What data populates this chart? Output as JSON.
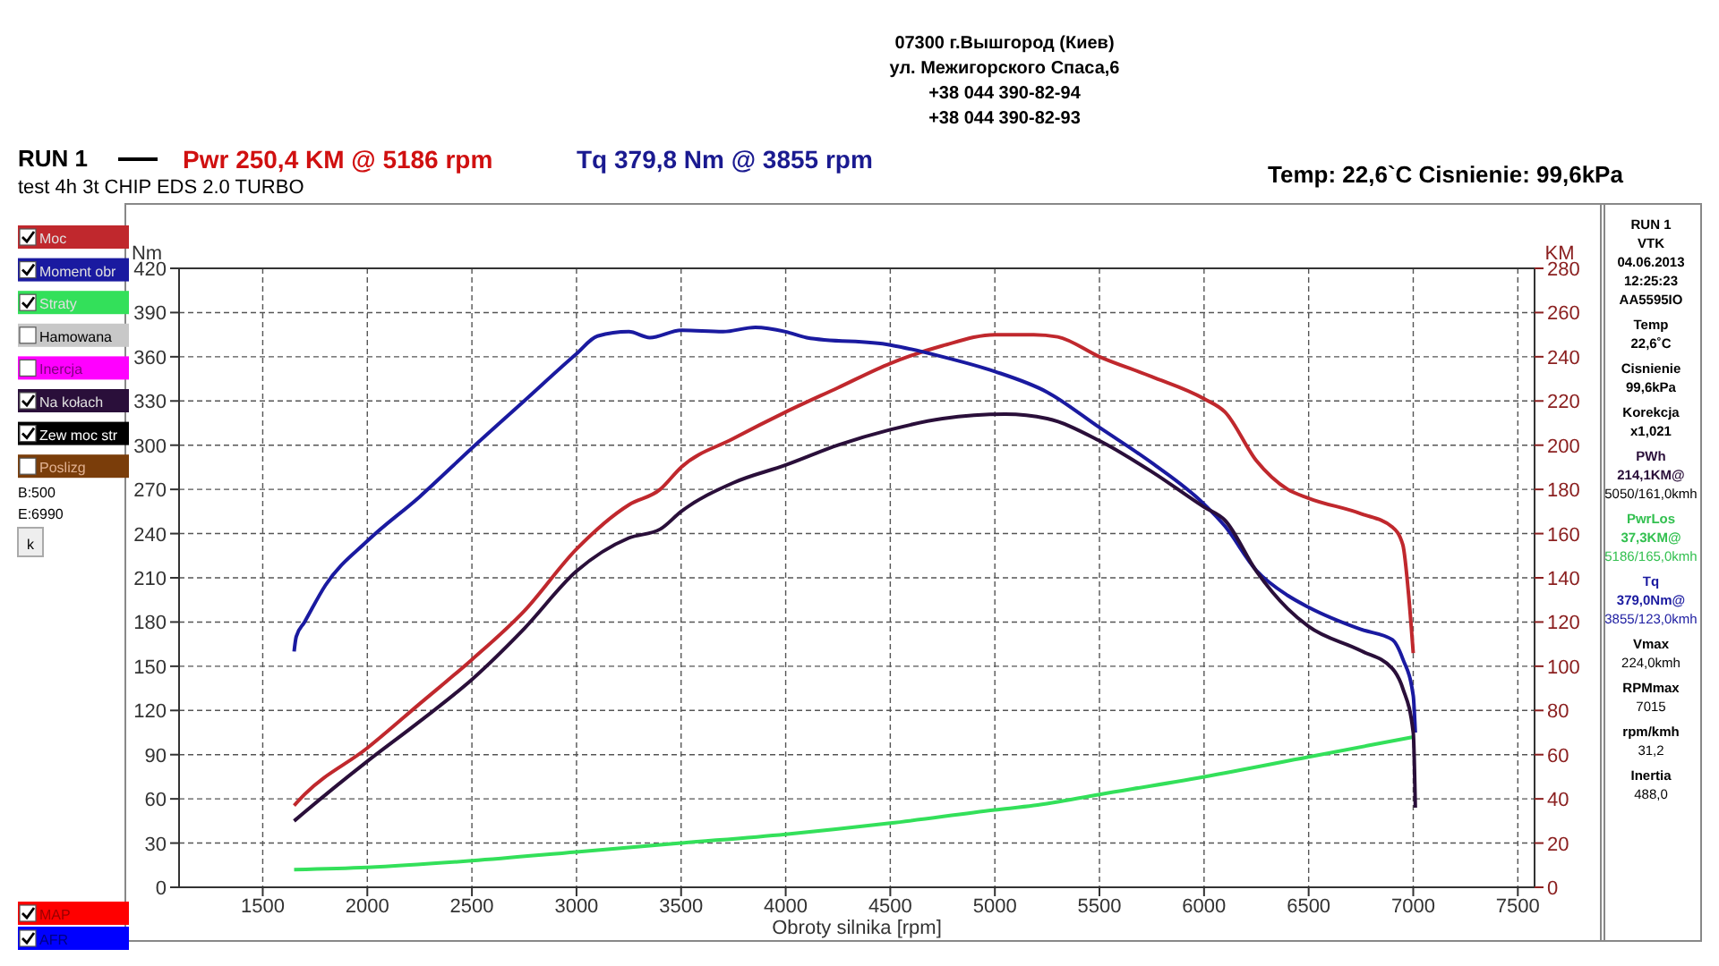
{
  "chart_data": {
    "type": "line",
    "title": "Pwr  250,4 KM @ 5186 rpm",
    "subtitle": "Tq 379,8 Nm @ 3855 rpm",
    "xlabel": "Obroty silnika [rpm]",
    "ylabel": "Nm",
    "y2label": "KM",
    "xlim": [
      1100,
      7580
    ],
    "xticks": [
      1500,
      2000,
      2500,
      3000,
      3500,
      4000,
      4500,
      5000,
      5500,
      6000,
      6500,
      7000,
      7500
    ],
    "ylim": [
      0,
      420
    ],
    "yticks": [
      0,
      30,
      60,
      90,
      120,
      150,
      180,
      210,
      240,
      270,
      300,
      330,
      360,
      390,
      420
    ],
    "y2lim": [
      0,
      280
    ],
    "y2ticks": [
      0,
      20,
      40,
      60,
      80,
      100,
      120,
      140,
      160,
      180,
      200,
      220,
      240,
      260,
      280
    ],
    "grid": true,
    "legend": "left",
    "line_style": "solid",
    "series": [
      {
        "name": "Moc",
        "color": "#c0282d",
        "axis": "y2",
        "x": [
          1650,
          1700,
          2000,
          2250,
          2500,
          2750,
          3000,
          3250,
          3400,
          3500,
          3750,
          4000,
          4250,
          4500,
          4750,
          5000,
          5186,
          5300,
          5500,
          5750,
          6000,
          6100,
          6250,
          6400,
          6500,
          6750,
          6900,
          6950,
          6980,
          7000
        ],
        "values": [
          37,
          42,
          63,
          83,
          103,
          125,
          153,
          173,
          180,
          190,
          203,
          215,
          226,
          237,
          245,
          250,
          250,
          249,
          240,
          231,
          221,
          215,
          193,
          180,
          176,
          169,
          163,
          155,
          130,
          106
        ]
      },
      {
        "name": "Moment obr",
        "color": "#1a1aa0",
        "x": [
          1650,
          1660,
          1700,
          1800,
          2000,
          2250,
          2500,
          2750,
          3000,
          3100,
          3250,
          3350,
          3500,
          3700,
          3855,
          4000,
          4100,
          4500,
          4750,
          5000,
          5250,
          5500,
          5750,
          6000,
          6100,
          6250,
          6400,
          6500,
          6750,
          6900,
          6950,
          7000,
          7010
        ],
        "values": [
          160,
          170,
          180,
          205,
          235,
          265,
          298,
          330,
          362,
          374,
          377,
          373,
          378,
          377,
          380,
          377,
          373,
          368,
          360,
          350,
          336,
          312,
          288,
          260,
          245,
          215,
          198,
          190,
          175,
          168,
          155,
          130,
          105
        ]
      },
      {
        "name": "Straty",
        "color": "#33e05a",
        "axis": "y2",
        "x": [
          1650,
          2000,
          2500,
          3000,
          3500,
          4000,
          4500,
          5000,
          5186,
          5500,
          6000,
          6500,
          7000
        ],
        "values": [
          8,
          9,
          12,
          16,
          20,
          24,
          29,
          35,
          37,
          42,
          50,
          59,
          68
        ]
      },
      {
        "name": "Na kołach",
        "color": "#2a0f3a",
        "axis": "y2",
        "x": [
          1650,
          1700,
          2000,
          2250,
          2500,
          2750,
          3000,
          3250,
          3400,
          3500,
          3750,
          4000,
          4250,
          4500,
          4750,
          5050,
          5250,
          5500,
          5750,
          6000,
          6100,
          6250,
          6400,
          6500,
          6750,
          6900,
          6950,
          7000,
          7010
        ],
        "values": [
          30,
          34,
          57,
          75,
          94,
          117,
          143,
          158,
          162,
          170,
          183,
          191,
          200,
          207,
          212,
          214,
          212,
          202,
          188,
          172,
          166,
          143,
          126,
          118,
          107,
          99,
          90,
          70,
          36
        ]
      }
    ],
    "annotations": [
      "RUN 1",
      "test  4h 3t  CHIP EDS 2.0 TURBO",
      "Temp: 22,6`C   Cisnienie: 99,6kPa",
      "07300 г.Вышгород (Киев)",
      "ул. Межигорского Спаса,6",
      "+38 044 390-82-94",
      "+38 044 390-82-93",
      "B:500",
      "E:6990",
      "k",
      "Hamowana",
      "Inercja",
      "Zew moc str",
      "Poslizg",
      "MAP",
      "AFR",
      "RUN 1",
      "VTK",
      "04.06.2013",
      "12:25:23",
      "AA5595IO",
      "Temp",
      "22,6˚C",
      "Cisnienie",
      "99,6kPa",
      "Korekcja",
      "x1,021",
      "PWh",
      "214,1KM@",
      "5050/161,0kmh",
      "PwrLos",
      "37,3KM@",
      "5186/165,0kmh",
      "Tq",
      "379,0Nm@",
      "3855/123,0kmh",
      "Vmax",
      "224,0kmh",
      "RPMmax",
      "7015",
      "rpm/kmh",
      "31,2",
      "Inertia",
      "488,0"
    ]
  }
}
